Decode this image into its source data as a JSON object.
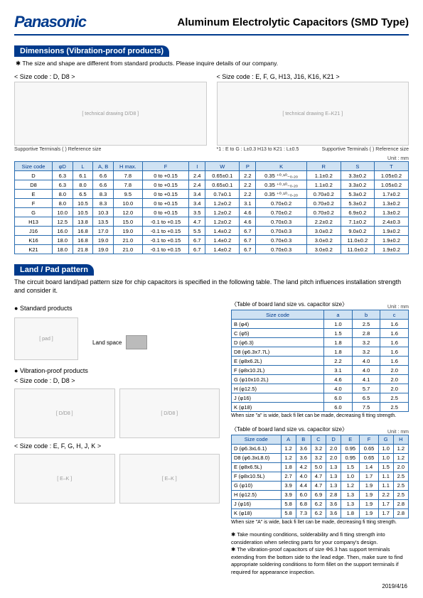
{
  "brand": "Panasonic",
  "title": "Aluminum Electrolytic Capacitors (SMD Type)",
  "sec1": {
    "heading": "Dimensions (Vibration-proof products)",
    "note": "The size and shape are different from standard products. Please inquire details of our company.",
    "codeA": "Size code : D, D8",
    "codeB": "Size code : E, F, G, H13, J16, K16, K21",
    "cap1": "Supportive Terminals   ( ) Reference size",
    "cap2": "*1 : E to G : L±0.3   H13 to K21 : L±0.5",
    "unit": "Unit : mm",
    "headers": [
      "Size code",
      "φD",
      "L",
      "A, B",
      "H max.",
      "F",
      "I",
      "W",
      "P",
      "K",
      "R",
      "S",
      "T"
    ],
    "rows": [
      [
        "D",
        "6.3",
        "6.1",
        "6.6",
        "7.8",
        "0 to +0.15",
        "2.4",
        "0.65±0.1",
        "2.2",
        "0.35 ⁺⁰·¹⁰₋₀.₂₀",
        "1.1±0.2",
        "3.3±0.2",
        "1.05±0.2"
      ],
      [
        "D8",
        "6.3",
        "8.0",
        "6.6",
        "7.8",
        "0 to +0.15",
        "2.4",
        "0.65±0.1",
        "2.2",
        "0.35 ⁺⁰·¹⁰₋₀.₂₀",
        "1.1±0.2",
        "3.3±0.2",
        "1.05±0.2"
      ],
      [
        "E",
        "8.0",
        "6.5",
        "8.3",
        "9.5",
        "0 to +0.15",
        "3.4",
        "0.7±0.1",
        "2.2",
        "0.35 ⁺⁰·¹⁰₋₀.₂₀",
        "0.70±0.2",
        "5.3±0.2",
        "1.7±0.2"
      ],
      [
        "F",
        "8.0",
        "10.5",
        "8.3",
        "10.0",
        "0 to +0.15",
        "3.4",
        "1.2±0.2",
        "3.1",
        "0.70±0.2",
        "0.70±0.2",
        "5.3±0.2",
        "1.3±0.2"
      ],
      [
        "G",
        "10.0",
        "10.5",
        "10.3",
        "12.0",
        "0 to +0.15",
        "3.5",
        "1.2±0.2",
        "4.6",
        "0.70±0.2",
        "0.70±0.2",
        "6.9±0.2",
        "1.3±0.2"
      ],
      [
        "H13",
        "12.5",
        "13.8",
        "13.5",
        "15.0",
        "-0.1 to +0.15",
        "4.7",
        "1.2±0.2",
        "4.6",
        "0.70±0.3",
        "2.2±0.2",
        "7.1±0.2",
        "2.4±0.3"
      ],
      [
        "J16",
        "16.0",
        "16.8",
        "17.0",
        "19.0",
        "-0.1 to +0.15",
        "5.5",
        "1.4±0.2",
        "6.7",
        "0.70±0.3",
        "3.0±0.2",
        "9.0±0.2",
        "1.9±0.2"
      ],
      [
        "K16",
        "18.0",
        "16.8",
        "19.0",
        "21.0",
        "-0.1 to +0.15",
        "6.7",
        "1.4±0.2",
        "6.7",
        "0.70±0.3",
        "3.0±0.2",
        "11.0±0.2",
        "1.9±0.2"
      ],
      [
        "K21",
        "18.0",
        "21.8",
        "19.0",
        "21.0",
        "-0.1 to +0.15",
        "6.7",
        "1.4±0.2",
        "6.7",
        "0.70±0.3",
        "3.0±0.2",
        "11.0±0.2",
        "1.9±0.2"
      ]
    ]
  },
  "sec2": {
    "heading": "Land / Pad pattern",
    "body": "The circuit board land/pad pattern size for chip capacitors is specified in the following table. The land pitch influences installation strength and consider it.",
    "b1": "Standard products",
    "b2": "Vibration-proof products",
    "codeA": "Size code : D, D8",
    "codeB": "Size code : E, F, G, H, J, K",
    "landSpace": "Land space",
    "t1": {
      "caption": "Table of board land size vs. capacitor size",
      "unit": "Unit : mm",
      "headers": [
        "Size code",
        "a",
        "b",
        "c"
      ],
      "rows": [
        [
          "B (φ4)",
          "1.0",
          "2.5",
          "1.6"
        ],
        [
          "C (φ5)",
          "1.5",
          "2.8",
          "1.6"
        ],
        [
          "D (φ6.3)",
          "1.8",
          "3.2",
          "1.6"
        ],
        [
          "D8 (φ6.3x7.7L)",
          "1.8",
          "3.2",
          "1.6"
        ],
        [
          "E (φ8x6.2L)",
          "2.2",
          "4.0",
          "1.6"
        ],
        [
          "F (φ8x10.2L)",
          "3.1",
          "4.0",
          "2.0"
        ],
        [
          "G (φ10x10.2L)",
          "4.6",
          "4.1",
          "2.0"
        ],
        [
          "H (φ12.5)",
          "4.0",
          "5.7",
          "2.0"
        ],
        [
          "J (φ16)",
          "6.0",
          "6.5",
          "2.5"
        ],
        [
          "K (φ18)",
          "6.0",
          "7.5",
          "2.5"
        ]
      ],
      "note": "When size \"a\" is wide, back fi llet can be made, decreasing fi tting strength."
    },
    "t2": {
      "caption": "Table of board land size vs. capacitor size",
      "unit": "Unit : mm",
      "headers": [
        "Size code",
        "A",
        "B",
        "C",
        "D",
        "E",
        "F",
        "G",
        "H"
      ],
      "rows": [
        [
          "D (φ6.3xL6.1)",
          "1.2",
          "3.6",
          "3.2",
          "2.0",
          "0.95",
          "0.65",
          "1.0",
          "1.2"
        ],
        [
          "D8 (φ6.3xL8.0)",
          "1.2",
          "3.6",
          "3.2",
          "2.0",
          "0.95",
          "0.65",
          "1.0",
          "1.2"
        ],
        [
          "E (φ8x6.5L)",
          "1.8",
          "4.2",
          "5.0",
          "1.3",
          "1.5",
          "1.4",
          "1.5",
          "2.0"
        ],
        [
          "F (φ8x10.5L)",
          "2.7",
          "4.0",
          "4.7",
          "1.3",
          "1.0",
          "1.7",
          "1.1",
          "2.5"
        ],
        [
          "G (φ10)",
          "3.9",
          "4.4",
          "4.7",
          "1.3",
          "1.2",
          "1.9",
          "1.1",
          "2.5"
        ],
        [
          "H (φ12.5)",
          "3.9",
          "6.0",
          "6.9",
          "2.8",
          "1.3",
          "1.9",
          "2.2",
          "2.5"
        ],
        [
          "J (φ16)",
          "5.8",
          "6.8",
          "6.2",
          "3.6",
          "1.3",
          "1.9",
          "1.7",
          "2.8"
        ],
        [
          "K (φ18)",
          "5.8",
          "7.3",
          "6.2",
          "3.6",
          "1.8",
          "1.9",
          "1.7",
          "2.8"
        ]
      ],
      "note": "When size \"A\" is wide, back fi llet can be made, decreasing fi tting strength."
    },
    "footnotes": [
      "Take mounting conditions, solderability and fi tting strength into consideration when selecting parts for your company's design.",
      "The vibration-proof capacitors of size Φ6.3 has support terminals extending from the bottom side to the lead edge. Then, make sure to find appropriate soldering conditions to form fillet on the support terminals if required for appearance inspection."
    ]
  },
  "date": "2019/4/16"
}
